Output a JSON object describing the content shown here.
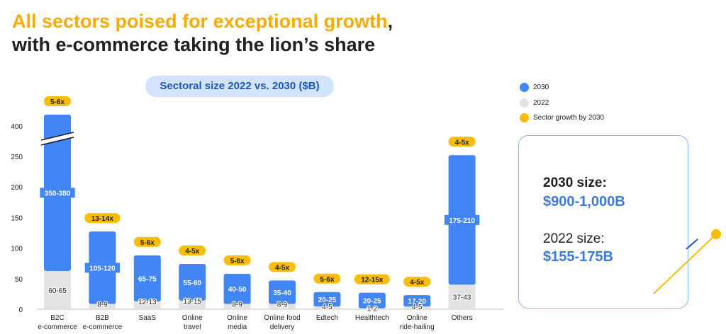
{
  "header": {
    "title_line1_highlight": "All sectors poised for exceptional growth",
    "title_line1_comma": ",",
    "title_line2": "with e-commerce taking the lion’s share"
  },
  "chart_pill": "Sectoral size 2022 vs. 2030 ($B)",
  "legend": {
    "items": [
      {
        "label": "2030",
        "color": "#4285F4"
      },
      {
        "label": "2022",
        "color": "#E3E3E6"
      },
      {
        "label": "Sector growth by 2030",
        "color": "#FBBC04"
      }
    ]
  },
  "summary": {
    "size_2030_label": "2030 size:",
    "size_2030_value": "$900-1,000B",
    "size_2022_label": "2022 size:",
    "size_2022_value": "$155-175B"
  },
  "chart_data": {
    "type": "bar",
    "stacked": true,
    "title": "Sectoral size 2022 vs. 2030 ($B)",
    "y_ticks": [
      0,
      50,
      100,
      150,
      200,
      250,
      400
    ],
    "axis_break": "between 250 and 400 (B2C e-commerce bar broken)",
    "colors": {
      "2030": "#4285F4",
      "2022": "#E3E3E6",
      "growth": "#FBBC04"
    },
    "sectors": [
      {
        "name_lines": [
          "B2C",
          "e-commerce"
        ],
        "v2022": 62.5,
        "v2030": 418,
        "label_2022": "60-65",
        "label_2030": "350-380",
        "growth": "5-6x"
      },
      {
        "name_lines": [
          "B2B",
          "e-commerce"
        ],
        "v2022": 8.5,
        "v2030": 127,
        "label_2022": "8-9",
        "label_2030": "105-120",
        "growth": "13-14x"
      },
      {
        "name_lines": [
          "SaaS"
        ],
        "v2022": 12.5,
        "v2030": 88,
        "label_2022": "12-13",
        "label_2030": "65-75",
        "growth": "5-6x"
      },
      {
        "name_lines": [
          "Online",
          "travel"
        ],
        "v2022": 14,
        "v2030": 74,
        "label_2022": "13-15",
        "label_2030": "55-60",
        "growth": "4-5x"
      },
      {
        "name_lines": [
          "Online",
          "media"
        ],
        "v2022": 8.5,
        "v2030": 58,
        "label_2022": "8-9",
        "label_2030": "40-50",
        "growth": "5-6x"
      },
      {
        "name_lines": [
          "Online food",
          "delivery"
        ],
        "v2022": 8.5,
        "v2030": 47,
        "label_2022": "8-9",
        "label_2030": "35-40",
        "growth": "4-5x"
      },
      {
        "name_lines": [
          "Edtech"
        ],
        "v2022": 4.5,
        "v2030": 28,
        "label_2022": "4-5",
        "label_2030": "20-25",
        "growth": "5-6x"
      },
      {
        "name_lines": [
          "Healthtech"
        ],
        "v2022": 1.5,
        "v2030": 27,
        "label_2022": "1-2",
        "label_2030": "20-25",
        "growth": "12-15x"
      },
      {
        "name_lines": [
          "Online",
          "ride-hailing"
        ],
        "v2022": 4.5,
        "v2030": 23,
        "label_2022": "4-5",
        "label_2030": "17-20",
        "growth": "4-5x"
      },
      {
        "name_lines": [
          "Others"
        ],
        "v2022": 40,
        "v2030": 253,
        "label_2022": "37-43",
        "label_2030": "175-210",
        "growth": "4-5x"
      }
    ]
  }
}
